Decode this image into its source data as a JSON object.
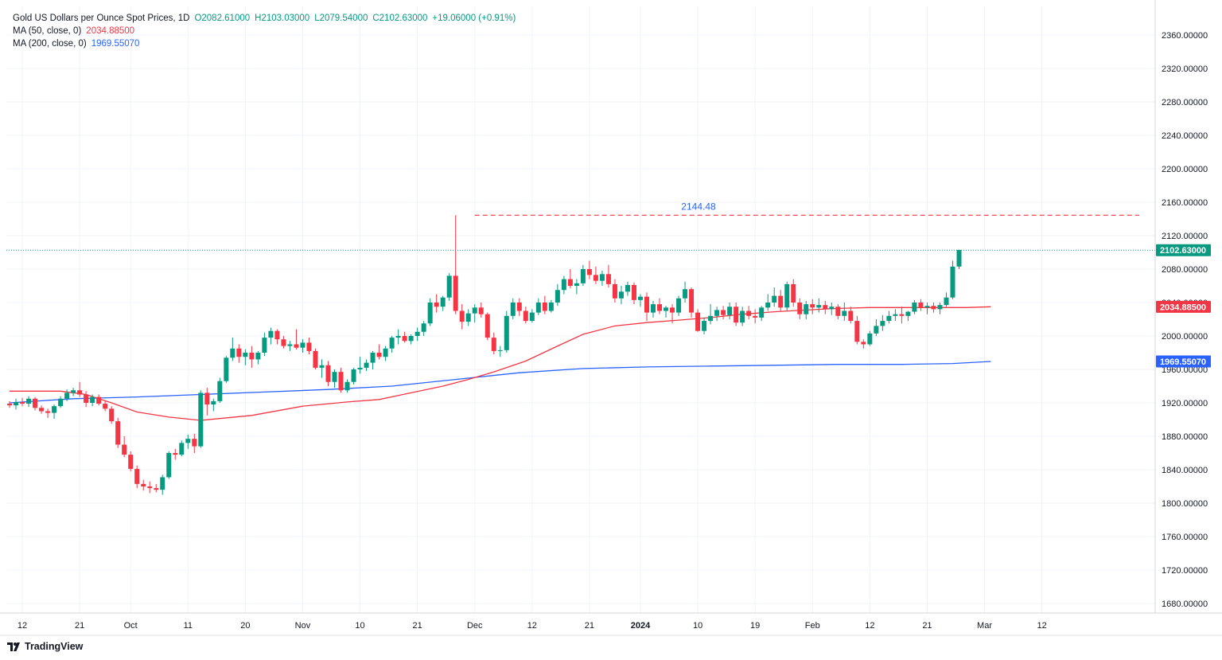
{
  "header": {
    "symbol": "Gold US Dollars per Ounce Spot Prices, 1D",
    "open": "O2082.61000",
    "high": "H2103.03000",
    "low": "L2079.54000",
    "close": "C2102.63000",
    "change": "+19.06000 (+0.91%)",
    "ma50_label": "MA (50, close, 0)",
    "ma50_value": "2034.88500",
    "ma200_label": "MA (200, close, 0)",
    "ma200_value": "1969.55070"
  },
  "brand": {
    "name": "TradingView",
    "icon": "tradingview-logo-icon"
  },
  "colors": {
    "up": "#089981",
    "down": "#f23645",
    "ma50": "#f23645",
    "ma200": "#2962ff",
    "grid": "#f0f3fa",
    "level": "#f23645",
    "level_label": "#2962ff"
  },
  "chart_data": {
    "type": "candlestick",
    "ylim": [
      1650,
      2395
    ],
    "y_ticks": [
      "2360.00000",
      "2320.00000",
      "2280.00000",
      "2240.00000",
      "2200.00000",
      "2160.00000",
      "2120.00000",
      "2080.00000",
      "2040.00000",
      "2000.00000",
      "1960.00000",
      "1920.00000",
      "1880.00000",
      "1840.00000",
      "1800.00000",
      "1760.00000",
      "1720.00000",
      "1680.00000"
    ],
    "x_ticks": [
      {
        "label": "12",
        "i": 2
      },
      {
        "label": "21",
        "i": 11
      },
      {
        "label": "Oct",
        "i": 19
      },
      {
        "label": "11",
        "i": 28
      },
      {
        "label": "20",
        "i": 37
      },
      {
        "label": "Nov",
        "i": 46
      },
      {
        "label": "10",
        "i": 55
      },
      {
        "label": "21",
        "i": 64
      },
      {
        "label": "Dec",
        "i": 73
      },
      {
        "label": "12",
        "i": 82
      },
      {
        "label": "21",
        "i": 91
      },
      {
        "label": "2024",
        "i": 99
      },
      {
        "label": "10",
        "i": 108
      },
      {
        "label": "19",
        "i": 117
      },
      {
        "label": "Feb",
        "i": 126
      },
      {
        "label": "12",
        "i": 135
      },
      {
        "label": "21",
        "i": 144
      },
      {
        "label": "Mar",
        "i": 153
      },
      {
        "label": "12",
        "i": 162
      }
    ],
    "candles": [
      [
        1919,
        1922,
        1914,
        1917
      ],
      [
        1917,
        1925,
        1912,
        1921
      ],
      [
        1921,
        1926,
        1916,
        1919
      ],
      [
        1919,
        1928,
        1915,
        1925
      ],
      [
        1925,
        1927,
        1911,
        1914
      ],
      [
        1914,
        1917,
        1907,
        1910
      ],
      [
        1910,
        1913,
        1902,
        1908
      ],
      [
        1908,
        1918,
        1901,
        1916
      ],
      [
        1916,
        1928,
        1914,
        1925
      ],
      [
        1925,
        1936,
        1922,
        1932
      ],
      [
        1932,
        1938,
        1928,
        1935
      ],
      [
        1935,
        1945,
        1927,
        1930
      ],
      [
        1930,
        1934,
        1915,
        1920
      ],
      [
        1920,
        1930,
        1916,
        1927
      ],
      [
        1927,
        1930,
        1917,
        1919
      ],
      [
        1919,
        1922,
        1910,
        1913
      ],
      [
        1913,
        1916,
        1895,
        1898
      ],
      [
        1898,
        1902,
        1866,
        1870
      ],
      [
        1870,
        1880,
        1855,
        1858
      ],
      [
        1858,
        1862,
        1838,
        1841
      ],
      [
        1841,
        1845,
        1818,
        1823
      ],
      [
        1823,
        1828,
        1815,
        1820
      ],
      [
        1820,
        1826,
        1812,
        1818
      ],
      [
        1818,
        1823,
        1813,
        1816
      ],
      [
        1816,
        1834,
        1810,
        1831
      ],
      [
        1831,
        1862,
        1829,
        1860
      ],
      [
        1860,
        1865,
        1852,
        1858
      ],
      [
        1858,
        1875,
        1856,
        1872
      ],
      [
        1872,
        1882,
        1865,
        1877
      ],
      [
        1877,
        1883,
        1860,
        1868
      ],
      [
        1868,
        1935,
        1866,
        1932
      ],
      [
        1932,
        1938,
        1905,
        1918
      ],
      [
        1918,
        1925,
        1910,
        1922
      ],
      [
        1922,
        1950,
        1920,
        1946
      ],
      [
        1946,
        1976,
        1944,
        1974
      ],
      [
        1974,
        1998,
        1970,
        1985
      ],
      [
        1985,
        1990,
        1968,
        1975
      ],
      [
        1975,
        1984,
        1965,
        1980
      ],
      [
        1980,
        1988,
        1962,
        1972
      ],
      [
        1972,
        1982,
        1966,
        1980
      ],
      [
        1980,
        2004,
        1976,
        1998
      ],
      [
        1998,
        2010,
        1990,
        2006
      ],
      [
        2006,
        2008,
        1990,
        1996
      ],
      [
        1996,
        2000,
        1985,
        1988
      ],
      [
        1988,
        1994,
        1982,
        1990
      ],
      [
        1990,
        2008,
        1984,
        1986
      ],
      [
        1986,
        1996,
        1980,
        1992
      ],
      [
        1992,
        1998,
        1978,
        1982
      ],
      [
        1982,
        1985,
        1960,
        1962
      ],
      [
        1962,
        1972,
        1950,
        1965
      ],
      [
        1965,
        1970,
        1940,
        1945
      ],
      [
        1945,
        1960,
        1938,
        1957
      ],
      [
        1957,
        1962,
        1932,
        1935
      ],
      [
        1935,
        1948,
        1932,
        1945
      ],
      [
        1945,
        1962,
        1942,
        1960
      ],
      [
        1960,
        1975,
        1955,
        1962
      ],
      [
        1962,
        1972,
        1958,
        1968
      ],
      [
        1968,
        1982,
        1960,
        1980
      ],
      [
        1980,
        1990,
        1972,
        1975
      ],
      [
        1975,
        1988,
        1970,
        1985
      ],
      [
        1985,
        2000,
        1980,
        1998
      ],
      [
        1998,
        2008,
        1990,
        2000
      ],
      [
        2000,
        2005,
        1992,
        1994
      ],
      [
        1994,
        2002,
        1990,
        2000
      ],
      [
        2000,
        2010,
        1994,
        2005
      ],
      [
        2005,
        2018,
        2000,
        2015
      ],
      [
        2015,
        2045,
        2012,
        2040
      ],
      [
        2040,
        2050,
        2028,
        2035
      ],
      [
        2035,
        2048,
        2030,
        2046
      ],
      [
        2046,
        2075,
        2042,
        2072
      ],
      [
        2072,
        2144.48,
        2026,
        2030
      ],
      [
        2030,
        2038,
        2008,
        2017
      ],
      [
        2017,
        2032,
        2012,
        2027
      ],
      [
        2027,
        2038,
        2016,
        2034
      ],
      [
        2034,
        2040,
        2022,
        2026
      ],
      [
        2026,
        2028,
        1995,
        1998
      ],
      [
        1998,
        2004,
        1978,
        1982
      ],
      [
        1982,
        1988,
        1975,
        1983
      ],
      [
        1983,
        2030,
        1980,
        2024
      ],
      [
        2024,
        2045,
        2020,
        2040
      ],
      [
        2040,
        2045,
        2024,
        2030
      ],
      [
        2030,
        2035,
        2015,
        2018
      ],
      [
        2018,
        2032,
        2016,
        2028
      ],
      [
        2028,
        2045,
        2025,
        2040
      ],
      [
        2040,
        2048,
        2026,
        2030
      ],
      [
        2030,
        2043,
        2028,
        2040
      ],
      [
        2040,
        2062,
        2036,
        2055
      ],
      [
        2055,
        2072,
        2050,
        2068
      ],
      [
        2068,
        2080,
        2057,
        2060
      ],
      [
        2060,
        2068,
        2050,
        2063
      ],
      [
        2063,
        2085,
        2060,
        2080
      ],
      [
        2080,
        2090,
        2068,
        2073
      ],
      [
        2073,
        2083,
        2062,
        2066
      ],
      [
        2066,
        2078,
        2060,
        2074
      ],
      [
        2074,
        2085,
        2058,
        2062
      ],
      [
        2062,
        2068,
        2040,
        2045
      ],
      [
        2045,
        2060,
        2038,
        2053
      ],
      [
        2053,
        2065,
        2048,
        2061
      ],
      [
        2061,
        2064,
        2038,
        2043
      ],
      [
        2043,
        2050,
        2035,
        2047
      ],
      [
        2047,
        2052,
        2018,
        2028
      ],
      [
        2028,
        2042,
        2022,
        2038
      ],
      [
        2038,
        2045,
        2026,
        2030
      ],
      [
        2030,
        2036,
        2022,
        2034
      ],
      [
        2034,
        2038,
        2015,
        2028
      ],
      [
        2028,
        2048,
        2024,
        2045
      ],
      [
        2045,
        2065,
        2040,
        2056
      ],
      [
        2056,
        2058,
        2022,
        2028
      ],
      [
        2028,
        2032,
        2005,
        2006
      ],
      [
        2006,
        2022,
        2002,
        2018
      ],
      [
        2018,
        2038,
        2014,
        2024
      ],
      [
        2024,
        2035,
        2018,
        2031
      ],
      [
        2031,
        2036,
        2020,
        2025
      ],
      [
        2025,
        2040,
        2020,
        2035
      ],
      [
        2035,
        2040,
        2012,
        2016
      ],
      [
        2016,
        2035,
        2012,
        2030
      ],
      [
        2030,
        2036,
        2020,
        2024
      ],
      [
        2024,
        2032,
        2015,
        2022
      ],
      [
        2022,
        2036,
        2018,
        2034
      ],
      [
        2034,
        2050,
        2030,
        2040
      ],
      [
        2040,
        2058,
        2035,
        2048
      ],
      [
        2048,
        2055,
        2030,
        2034
      ],
      [
        2034,
        2065,
        2030,
        2062
      ],
      [
        2062,
        2068,
        2035,
        2040
      ],
      [
        2040,
        2045,
        2020,
        2026
      ],
      [
        2026,
        2042,
        2020,
        2038
      ],
      [
        2038,
        2044,
        2026,
        2034
      ],
      [
        2034,
        2045,
        2028,
        2037
      ],
      [
        2037,
        2042,
        2026,
        2032
      ],
      [
        2032,
        2040,
        2025,
        2035
      ],
      [
        2035,
        2038,
        2020,
        2024
      ],
      [
        2024,
        2040,
        2018,
        2030
      ],
      [
        2030,
        2035,
        2015,
        2018
      ],
      [
        2018,
        2024,
        1990,
        1993
      ],
      [
        1993,
        1996,
        1985,
        1990
      ],
      [
        1990,
        2006,
        1988,
        2003
      ],
      [
        2003,
        2020,
        2000,
        2012
      ],
      [
        2012,
        2025,
        2006,
        2018
      ],
      [
        2018,
        2030,
        2015,
        2024
      ],
      [
        2024,
        2032,
        2018,
        2026
      ],
      [
        2026,
        2035,
        2015,
        2024
      ],
      [
        2024,
        2030,
        2018,
        2029
      ],
      [
        2029,
        2043,
        2026,
        2040
      ],
      [
        2040,
        2044,
        2030,
        2034
      ],
      [
        2034,
        2040,
        2026,
        2036
      ],
      [
        2036,
        2040,
        2028,
        2032
      ],
      [
        2032,
        2040,
        2026,
        2037
      ],
      [
        2037,
        2052,
        2035,
        2046
      ],
      [
        2046,
        2090,
        2044,
        2083
      ],
      [
        2083,
        2103,
        2080,
        2103
      ]
    ],
    "ma50": [
      [
        0,
        1934
      ],
      [
        8,
        1934
      ],
      [
        12,
        1930
      ],
      [
        16,
        1920
      ],
      [
        20,
        1909
      ],
      [
        25,
        1903
      ],
      [
        30,
        1899
      ],
      [
        38,
        1905
      ],
      [
        46,
        1916
      ],
      [
        53,
        1921
      ],
      [
        58,
        1924
      ],
      [
        63,
        1932
      ],
      [
        68,
        1940
      ],
      [
        72,
        1948
      ],
      [
        76,
        1957
      ],
      [
        81,
        1970
      ],
      [
        86,
        1988
      ],
      [
        90,
        2002
      ],
      [
        95,
        2012
      ],
      [
        100,
        2016
      ],
      [
        105,
        2019
      ],
      [
        110,
        2022
      ],
      [
        115,
        2026
      ],
      [
        120,
        2029
      ],
      [
        125,
        2031
      ],
      [
        130,
        2033
      ],
      [
        135,
        2034
      ],
      [
        140,
        2034
      ],
      [
        145,
        2034
      ],
      [
        150,
        2034
      ],
      [
        154,
        2035
      ]
    ],
    "ma200": [
      [
        0,
        1920
      ],
      [
        10,
        1925
      ],
      [
        20,
        1927
      ],
      [
        30,
        1930
      ],
      [
        40,
        1933
      ],
      [
        50,
        1936
      ],
      [
        60,
        1940
      ],
      [
        70,
        1948
      ],
      [
        80,
        1956
      ],
      [
        90,
        1961
      ],
      [
        100,
        1963
      ],
      [
        110,
        1964
      ],
      [
        120,
        1965
      ],
      [
        130,
        1966
      ],
      [
        140,
        1966
      ],
      [
        148,
        1967
      ],
      [
        154,
        1969.55
      ]
    ],
    "level": {
      "value": 2144.48,
      "label": "2144.48",
      "start_index": 73
    },
    "last_price": {
      "value": 2102.63,
      "label": "2102.63000"
    },
    "ma50_last": {
      "value": 2034.885,
      "label": "2034.88500"
    },
    "ma200_last": {
      "value": 1969.5507,
      "label": "1969.55070"
    }
  }
}
